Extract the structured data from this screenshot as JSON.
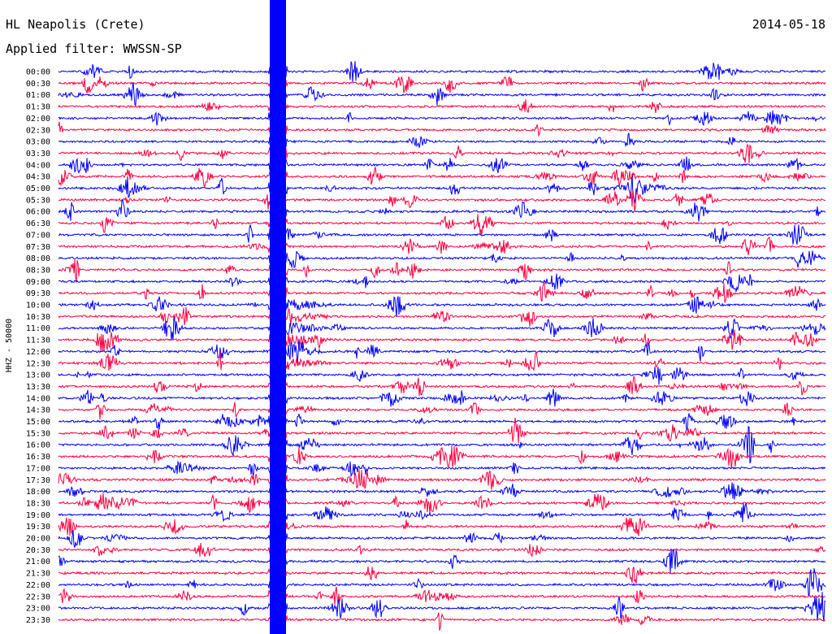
{
  "header": {
    "station": "HL Neapolis (Crete)",
    "date": "2014-05-18",
    "filter_label": "Applied filter:",
    "filter_name": "WWSSN-SP"
  },
  "colors": {
    "even_trace": "#0000ff",
    "odd_trace": "#ff0040",
    "background": "#ffffff"
  },
  "chart_data": {
    "type": "line",
    "title": "HL Neapolis (Crete)",
    "date": "2014-05-18",
    "filter": "WWSSN-SP",
    "ylabel": "HHZ - 50000",
    "row_interval_minutes": 30,
    "row_labels": [
      "00:00",
      "00:30",
      "01:00",
      "01:30",
      "02:00",
      "02:30",
      "03:00",
      "03:30",
      "04:00",
      "04:30",
      "05:00",
      "05:30",
      "06:00",
      "06:30",
      "07:00",
      "07:30",
      "08:00",
      "08:30",
      "09:00",
      "09:30",
      "10:00",
      "10:30",
      "11:00",
      "11:30",
      "12:00",
      "12:30",
      "13:00",
      "13:30",
      "14:00",
      "14:30",
      "15:00",
      "15:30",
      "16:00",
      "16:30",
      "17:00",
      "17:30",
      "18:00",
      "18:30",
      "19:00",
      "19:30",
      "20:00",
      "20:30",
      "21:00",
      "21:30",
      "22:00",
      "22:30",
      "23:00",
      "23:30"
    ],
    "series_colors": [
      "#0000ff",
      "#ff0040"
    ],
    "notes": "Helicorder: 48 traces of 30 minutes each; even rows blue, odd rows red; large saturated event near minute 8 of the 11:30 row."
  }
}
